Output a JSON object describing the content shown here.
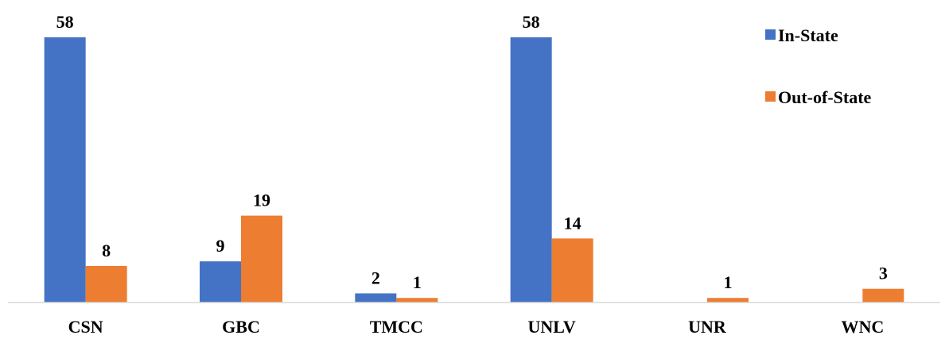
{
  "chart_data": {
    "type": "bar",
    "title": "",
    "xlabel": "",
    "ylabel": "",
    "categories": [
      "CSN",
      "GBC",
      "TMCC",
      "UNLV",
      "UNR",
      "WNC"
    ],
    "series": [
      {
        "name": "In-State",
        "color": "#4472C4",
        "values": [
          58,
          9,
          2,
          58,
          null,
          null
        ],
        "labels": [
          "58",
          "9",
          "2",
          "58",
          "",
          ""
        ]
      },
      {
        "name": "Out-of-State",
        "color": "#ED7D31",
        "values": [
          8,
          19,
          1,
          14,
          1,
          3
        ],
        "labels": [
          "8",
          "19",
          "1",
          "14",
          "1",
          "3"
        ]
      }
    ],
    "ylim": [
      0,
      58
    ],
    "grid": false,
    "legend": {
      "position": "top-right"
    },
    "axis_color": "#D9D9D9"
  }
}
